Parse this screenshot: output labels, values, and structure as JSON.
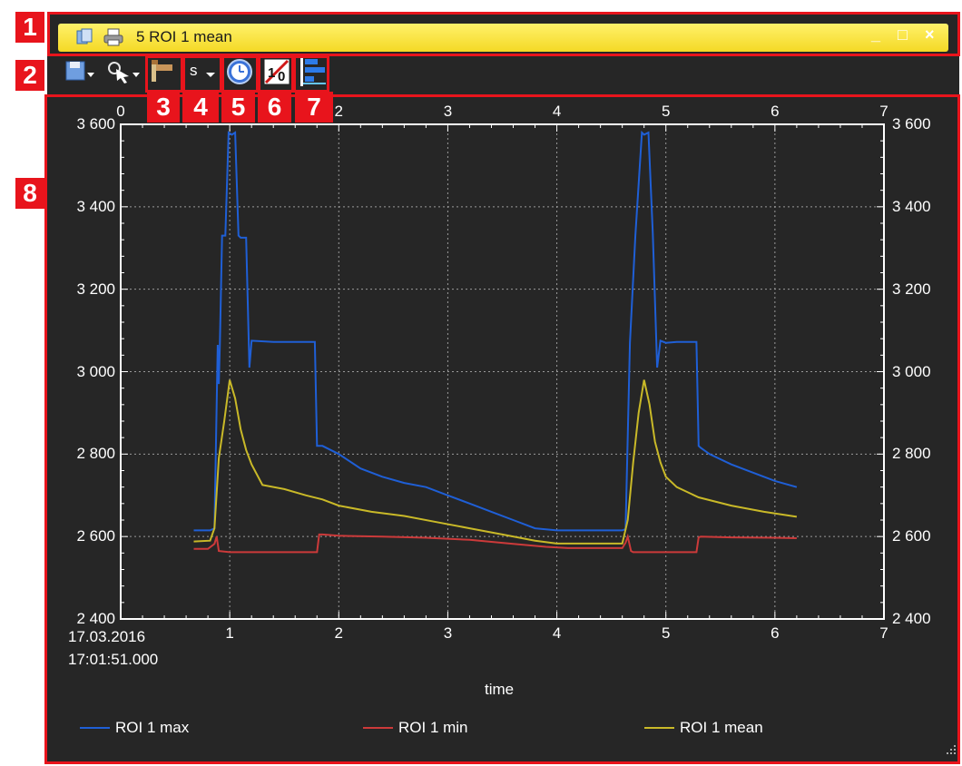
{
  "window": {
    "title": "5 ROI 1 mean",
    "minimize": "_",
    "maximize": "□",
    "close": "×"
  },
  "toolbar": {
    "unit_label": "s"
  },
  "callouts": [
    "1",
    "2",
    "3",
    "4",
    "5",
    "6",
    "7",
    "8"
  ],
  "chart_data": {
    "type": "line",
    "xlabel": "time",
    "x_start_date": "17.03.2016",
    "x_start_time": "17:01:51.000",
    "xlim": [
      0,
      7
    ],
    "ylim": [
      2400,
      3600
    ],
    "x_ticks_top": [
      "0",
      "1",
      "2",
      "3",
      "4",
      "5",
      "6",
      "7"
    ],
    "x_ticks_bottom": [
      "1",
      "2",
      "3",
      "4",
      "5",
      "6",
      "7"
    ],
    "y_ticks": [
      "2 400",
      "2 600",
      "2 800",
      "3 000",
      "3 200",
      "3 400",
      "3 600"
    ],
    "grid": true,
    "legend_placement": "bottom",
    "series": [
      {
        "name": "ROI 1 max",
        "color": "#1f5fd6",
        "x": [
          0.67,
          0.82,
          0.86,
          0.89,
          0.9,
          0.91,
          0.93,
          0.96,
          0.99,
          1.02,
          1.05,
          1.08,
          1.1,
          1.15,
          1.18,
          1.2,
          1.4,
          1.6,
          1.78,
          1.8,
          1.85,
          2.0,
          2.2,
          2.4,
          2.6,
          2.8,
          3.0,
          3.2,
          3.4,
          3.6,
          3.8,
          4.0,
          4.2,
          4.4,
          4.6,
          4.63,
          4.67,
          4.72,
          4.78,
          4.8,
          4.84,
          4.88,
          4.92,
          4.95,
          5.0,
          5.1,
          5.2,
          5.28,
          5.3,
          5.32,
          5.4,
          5.6,
          5.8,
          6.0,
          6.2
        ],
        "y": [
          2615,
          2615,
          2620,
          3065,
          2970,
          3070,
          3330,
          3330,
          3580,
          3575,
          3580,
          3330,
          3325,
          3325,
          3010,
          3075,
          3072,
          3072,
          3072,
          2820,
          2820,
          2800,
          2765,
          2745,
          2730,
          2720,
          2700,
          2680,
          2660,
          2640,
          2620,
          2615,
          2615,
          2615,
          2615,
          2618,
          3070,
          3330,
          3580,
          3575,
          3580,
          3335,
          3010,
          3075,
          3070,
          3072,
          3072,
          3072,
          2820,
          2815,
          2800,
          2775,
          2755,
          2735,
          2720
        ]
      },
      {
        "name": "ROI 1 min",
        "color": "#cc3a3a",
        "x": [
          0.67,
          0.8,
          0.86,
          0.88,
          0.9,
          1.0,
          1.3,
          1.6,
          1.8,
          1.82,
          1.85,
          2.0,
          2.4,
          2.8,
          3.2,
          3.6,
          3.9,
          4.1,
          4.3,
          4.6,
          4.63,
          4.65,
          4.68,
          4.7,
          5.0,
          5.28,
          5.3,
          5.32,
          5.6,
          6.0,
          6.2
        ],
        "y": [
          2570,
          2570,
          2582,
          2600,
          2565,
          2562,
          2562,
          2562,
          2562,
          2605,
          2605,
          2602,
          2600,
          2597,
          2592,
          2582,
          2575,
          2572,
          2572,
          2572,
          2585,
          2600,
          2565,
          2562,
          2562,
          2562,
          2598,
          2600,
          2598,
          2597,
          2596
        ]
      },
      {
        "name": "ROI 1 mean",
        "color": "#c9b928",
        "x": [
          0.67,
          0.82,
          0.86,
          0.9,
          0.95,
          1.0,
          1.05,
          1.1,
          1.15,
          1.2,
          1.3,
          1.5,
          1.7,
          1.85,
          2.0,
          2.3,
          2.6,
          2.9,
          3.2,
          3.5,
          3.8,
          4.0,
          4.3,
          4.6,
          4.65,
          4.7,
          4.75,
          4.8,
          4.85,
          4.9,
          4.95,
          5.0,
          5.1,
          5.3,
          5.6,
          5.9,
          6.2
        ],
        "y": [
          2588,
          2590,
          2620,
          2790,
          2880,
          2980,
          2935,
          2860,
          2810,
          2775,
          2725,
          2715,
          2700,
          2690,
          2675,
          2660,
          2650,
          2635,
          2620,
          2605,
          2590,
          2583,
          2583,
          2583,
          2640,
          2780,
          2900,
          2980,
          2920,
          2830,
          2780,
          2745,
          2720,
          2695,
          2675,
          2660,
          2648
        ]
      }
    ]
  }
}
